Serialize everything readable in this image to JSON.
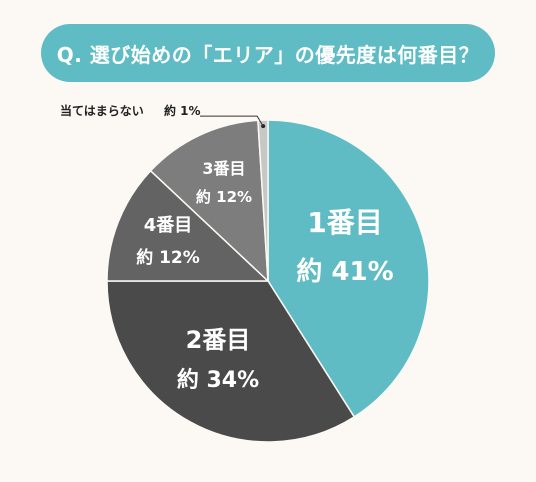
{
  "title": "Q. 選び始めの「エリア」の優先度は何番目？",
  "colors": {
    "background": "#fcf9f4",
    "accent": "#5fbcc5"
  },
  "chart_data": {
    "type": "pie",
    "title": "Q. 選び始めの「エリア」の優先度は何番目？",
    "slices": [
      {
        "label": "1番目",
        "value_text": "約 41%",
        "value": 41,
        "color": "#5fbcc5"
      },
      {
        "label": "2番目",
        "value_text": "約 34%",
        "value": 34,
        "color": "#4a4a4a"
      },
      {
        "label": "4番目",
        "value_text": "約 12%",
        "value": 12,
        "color": "#636363"
      },
      {
        "label": "3番目",
        "value_text": "約 12%",
        "value": 12,
        "color": "#7d7d7d"
      },
      {
        "label": "当てはまらない",
        "value_text": "約 1%",
        "value": 1,
        "color": "#c7c7c7"
      }
    ]
  }
}
